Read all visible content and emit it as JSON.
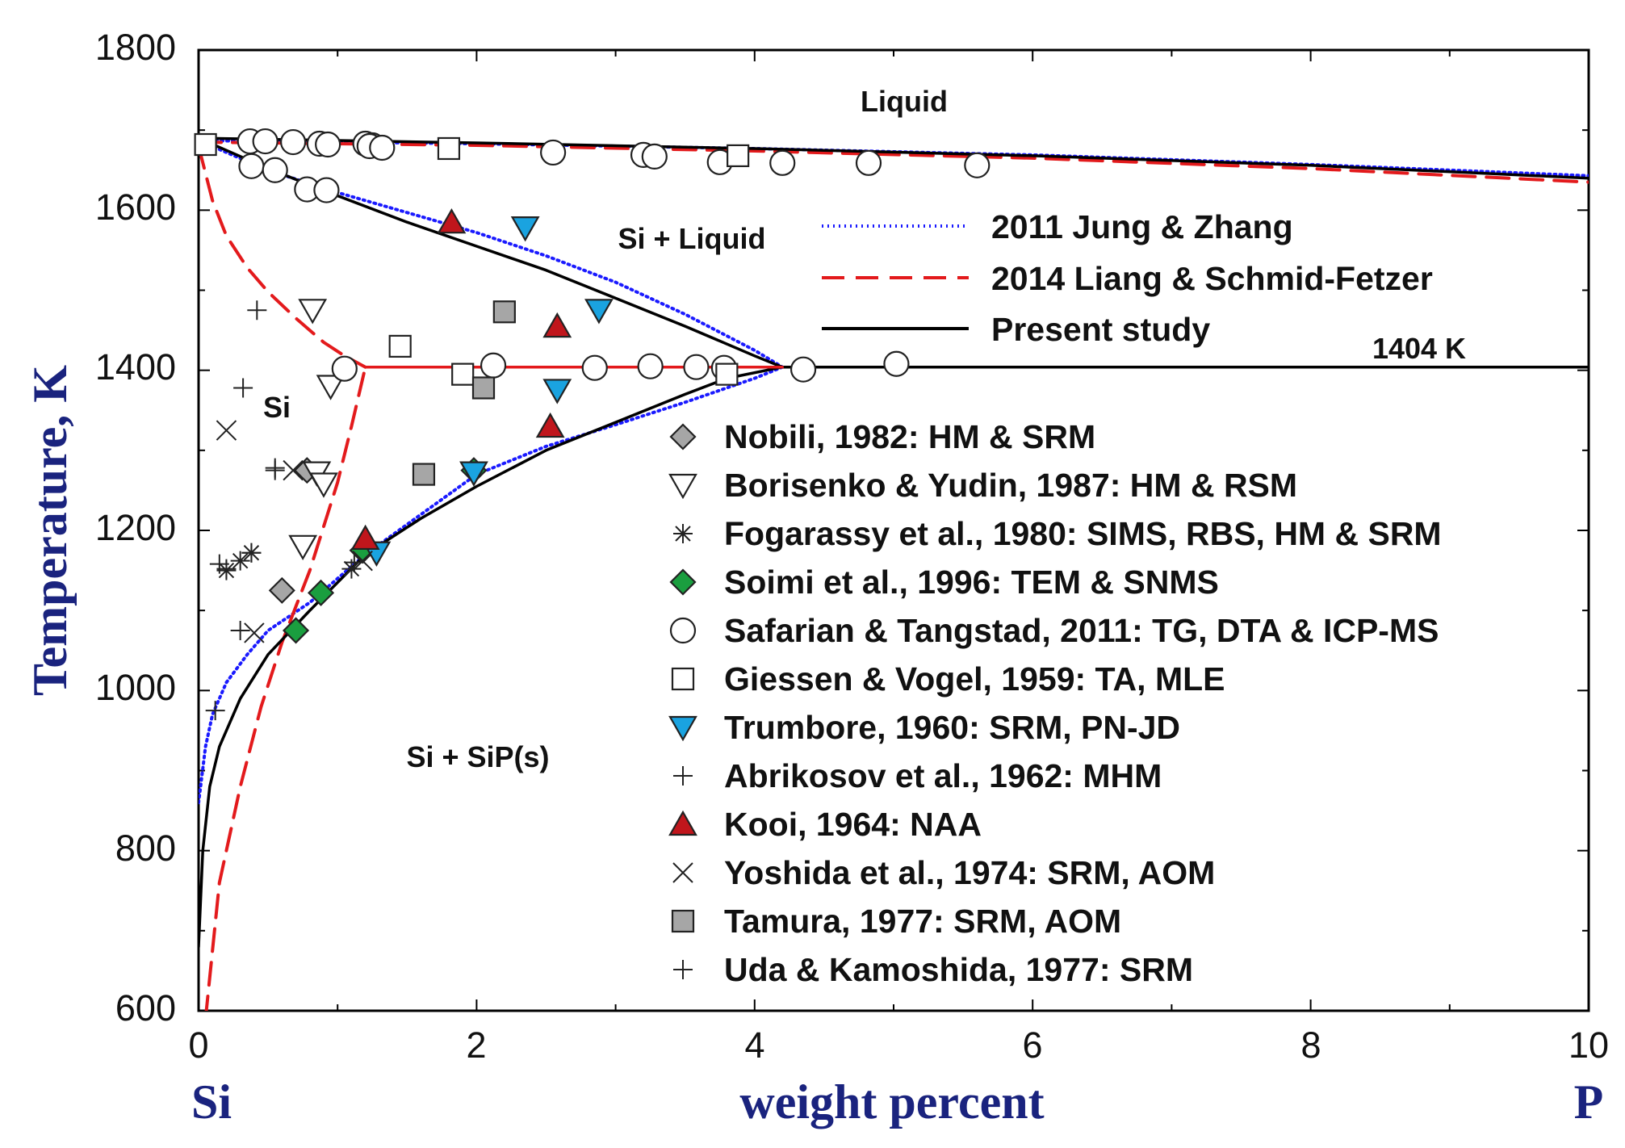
{
  "chart_data": {
    "type": "scatter",
    "title": "",
    "xlabel": "weight percent",
    "ylabel": "Temperature, K",
    "x_left_label": "Si",
    "x_right_label": "P",
    "xlim": [
      0,
      10
    ],
    "ylim": [
      600,
      1800
    ],
    "xticks": [
      "0",
      "2",
      "4",
      "6",
      "8",
      "10"
    ],
    "yticks": [
      "600",
      "800",
      "1000",
      "1200",
      "1400",
      "1600",
      "1800"
    ],
    "region_labels": [
      "Liquid",
      "Si + Liquid",
      "Si",
      "Si + SiP(s)",
      "1404 K"
    ],
    "lines": [
      {
        "name": "2011 Jung & Zhang",
        "style": "dotted",
        "color": "#1a1aff",
        "segments": [
          {
            "x": [
              0,
              2,
              4,
              6,
              8,
              10
            ],
            "y": [
              1687,
              1683,
              1677,
              1669,
              1657,
              1643
            ]
          },
          {
            "x": [
              0,
              0.5,
              1,
              1.5,
              2,
              2.5,
              3,
              3.5,
              4,
              4.2
            ],
            "y": [
              1687,
              1650,
              1622,
              1597,
              1572,
              1543,
              1510,
              1470,
              1425,
              1404
            ]
          },
          {
            "x": [
              0,
              0.05,
              0.1,
              0.2,
              0.35,
              0.5,
              0.8,
              1.2,
              1.6,
              2,
              2.5,
              3,
              3.5,
              4,
              4.2
            ],
            "y": [
              860,
              930,
              970,
              1010,
              1045,
              1075,
              1110,
              1170,
              1220,
              1270,
              1305,
              1332,
              1360,
              1390,
              1404
            ]
          }
        ]
      },
      {
        "name": "2014 Liang & Schmid-Fetzer",
        "style": "dashed",
        "color": "#e31a1c",
        "segments": [
          {
            "x": [
              0,
              2,
              4,
              6,
              8,
              10
            ],
            "y": [
              1685,
              1681,
              1674,
              1665,
              1652,
              1635
            ]
          },
          {
            "x": [
              0,
              0.1,
              0.2,
              0.35,
              0.5,
              0.7,
              0.9,
              1.05,
              1.2
            ],
            "y": [
              1680,
              1612,
              1568,
              1528,
              1498,
              1465,
              1435,
              1418,
              1404
            ]
          },
          {
            "x": [
              0.05,
              0.15,
              0.3,
              0.45,
              0.6,
              0.8,
              1,
              1.1,
              1.2
            ],
            "y": [
              590,
              760,
              880,
              980,
              1060,
              1150,
              1260,
              1330,
              1404
            ]
          }
        ]
      },
      {
        "name": "Present study",
        "style": "solid",
        "color": "#000000",
        "segments": [
          {
            "x": [
              0,
              2,
              4,
              6,
              8,
              10
            ],
            "y": [
              1690,
              1684,
              1677,
              1668,
              1656,
              1640
            ]
          },
          {
            "x": [
              0,
              0.5,
              1,
              1.5,
              2,
              2.5,
              3,
              3.5,
              4,
              4.2
            ],
            "y": [
              1690,
              1652,
              1618,
              1585,
              1555,
              1525,
              1490,
              1455,
              1418,
              1404
            ]
          },
          {
            "x": [
              0,
              0.03,
              0.08,
              0.15,
              0.3,
              0.5,
              0.8,
              1.2,
              1.6,
              2,
              2.5,
              3,
              3.5,
              3.8,
              4.2
            ],
            "y": [
              680,
              800,
              880,
              930,
              990,
              1045,
              1100,
              1170,
              1215,
              1255,
              1300,
              1335,
              1370,
              1390,
              1404
            ]
          },
          {
            "x": [
              4.2,
              10
            ],
            "y": [
              1404,
              1404
            ]
          }
        ]
      },
      {
        "name": "eutectic-1404-K",
        "style": "solid",
        "color": "#e31a1c",
        "segments": [
          {
            "x": [
              1.2,
              4.2
            ],
            "y": [
              1404,
              1404
            ]
          }
        ]
      }
    ],
    "series": [
      {
        "name": "Nobili, 1982: HM & SRM",
        "marker": "diamond",
        "fill": "#a6a6a6",
        "points": [
          [
            0.6,
            1125
          ],
          [
            0.78,
            1275
          ]
        ]
      },
      {
        "name": "Borisenko & Yudin, 1987: HM & RSM",
        "marker": "triangle-down",
        "fill": "#ffffff",
        "points": [
          [
            0.82,
            1475
          ],
          [
            0.95,
            1380
          ],
          [
            0.85,
            1272
          ],
          [
            0.9,
            1258
          ],
          [
            0.75,
            1180
          ]
        ]
      },
      {
        "name": "Fogarassy et al., 1980: SIMS, RBS, HM & SRM",
        "marker": "asterisk",
        "fill": "none",
        "points": [
          [
            0.2,
            1150
          ],
          [
            0.3,
            1162
          ],
          [
            0.38,
            1172
          ],
          [
            1.1,
            1152
          ]
        ]
      },
      {
        "name": "Soimi et al., 1996: TEM & SNMS",
        "marker": "diamond",
        "fill": "#1a9e3f",
        "points": [
          [
            0.7,
            1075
          ],
          [
            0.88,
            1122
          ],
          [
            1.18,
            1175
          ],
          [
            1.98,
            1275
          ]
        ]
      },
      {
        "name": "Safarian & Tangstad, 2011: TG, DTA & ICP-MS",
        "marker": "circle",
        "fill": "#ffffff",
        "points": [
          [
            0.37,
            1686
          ],
          [
            0.48,
            1686
          ],
          [
            0.68,
            1685
          ],
          [
            0.87,
            1683
          ],
          [
            0.93,
            1682
          ],
          [
            1.2,
            1683
          ],
          [
            1.25,
            1681
          ],
          [
            1.23,
            1680
          ],
          [
            1.32,
            1678
          ],
          [
            2.55,
            1672
          ],
          [
            3.2,
            1669
          ],
          [
            3.28,
            1667
          ],
          [
            3.75,
            1660
          ],
          [
            4.2,
            1659
          ],
          [
            4.82,
            1659
          ],
          [
            5.6,
            1656
          ],
          [
            0.38,
            1655
          ],
          [
            0.55,
            1650
          ],
          [
            0.78,
            1626
          ],
          [
            0.92,
            1625
          ],
          [
            1.05,
            1402
          ],
          [
            2.12,
            1406
          ],
          [
            2.85,
            1403
          ],
          [
            3.25,
            1405
          ],
          [
            3.58,
            1404
          ],
          [
            3.78,
            1403
          ],
          [
            4.35,
            1401
          ],
          [
            5.02,
            1408
          ]
        ]
      },
      {
        "name": "Giessen & Vogel, 1959: TA, MLE",
        "marker": "square",
        "fill": "#ffffff",
        "points": [
          [
            0.05,
            1682
          ],
          [
            1.8,
            1677
          ],
          [
            3.88,
            1668
          ],
          [
            1.45,
            1430
          ],
          [
            1.9,
            1395
          ],
          [
            3.8,
            1395
          ]
        ]
      },
      {
        "name": "Trumbore, 1960: SRM, PN-JD",
        "marker": "triangle-down",
        "fill": "#1aa3e0",
        "points": [
          [
            2.35,
            1578
          ],
          [
            2.88,
            1475
          ],
          [
            2.58,
            1375
          ],
          [
            1.98,
            1272
          ],
          [
            1.28,
            1172
          ]
        ]
      },
      {
        "name": "Abrikosov et al., 1962: MHM",
        "marker": "plus",
        "fill": "none",
        "points": [
          [
            0.42,
            1475
          ],
          [
            0.32,
            1378
          ],
          [
            0.55,
            1275
          ],
          [
            0.3,
            1075
          ],
          [
            0.12,
            975
          ],
          [
            1.12,
            1160
          ]
        ]
      },
      {
        "name": "Kooi, 1964: NAA",
        "marker": "triangle-up",
        "fill": "#c0161c",
        "points": [
          [
            1.82,
            1585
          ],
          [
            2.58,
            1455
          ],
          [
            2.53,
            1330
          ],
          [
            1.2,
            1190
          ]
        ]
      },
      {
        "name": "Yoshida et al., 1974: SRM, AOM",
        "marker": "cross",
        "fill": "none",
        "points": [
          [
            0.2,
            1325
          ],
          [
            0.68,
            1275
          ],
          [
            0.4,
            1072
          ],
          [
            1.18,
            1162
          ]
        ]
      },
      {
        "name": "Tamura, 1977: SRM, AOM",
        "marker": "square",
        "fill": "#a6a6a6",
        "points": [
          [
            2.2,
            1473
          ],
          [
            2.05,
            1378
          ],
          [
            1.62,
            1270
          ]
        ]
      },
      {
        "name": "Uda & Kamoshida, 1977: SRM",
        "marker": "plus",
        "fill": "none",
        "points": [
          [
            0.55,
            1278
          ],
          [
            0.2,
            1152
          ],
          [
            0.38,
            1172
          ],
          [
            0.15,
            1158
          ]
        ]
      }
    ]
  }
}
